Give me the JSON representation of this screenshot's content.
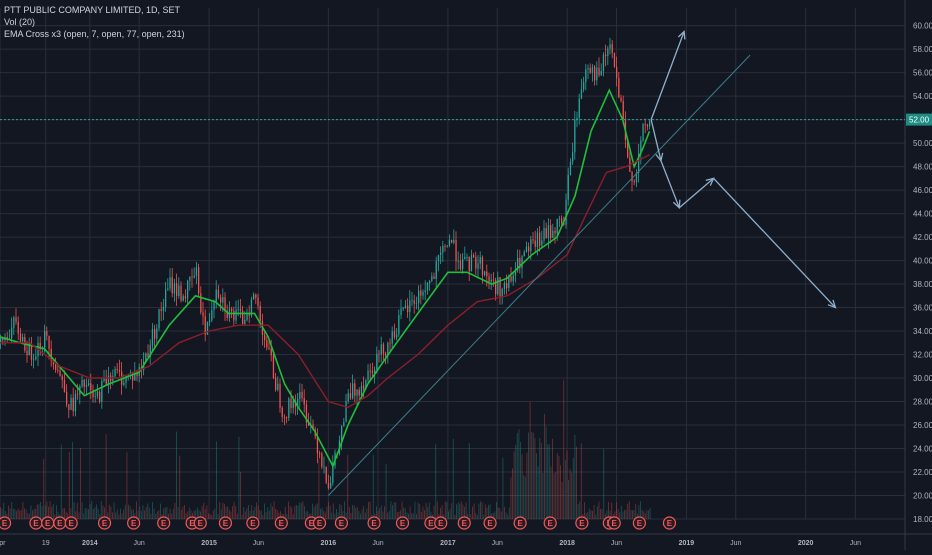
{
  "legend": {
    "title": "PTT PUBLIC COMPANY LIMITED, 1D, SET",
    "volume": "Vol (20)",
    "ema": "EMA Cross x3 (open, 7, open, 77, open, 231)"
  },
  "price_tag": "52.00",
  "colors": {
    "background": "#131722",
    "grid": "#2a2e39",
    "up": "#26a69a",
    "down": "#ef5350",
    "ema_fast": "#1fbf3a",
    "ema_slow": "#8b1e2a",
    "trendline": "#3a7f8a",
    "arrows": "#8fb0cc",
    "price_line": "#26a69a",
    "event_marker": "#f05a5a"
  },
  "event_marker_label": "E",
  "chart_data": {
    "type": "line",
    "title": "PTT PUBLIC COMPANY LIMITED, 1D, SET",
    "x_axis": {
      "tick_labels": [
        "Apr",
        "19",
        "2014",
        "Jun",
        "2015",
        "Jun",
        "2016",
        "Jun",
        "2017",
        "Jun",
        "2018",
        "Jun",
        "2019",
        "Jun",
        "2020",
        "Jun"
      ],
      "tick_dates": [
        "2013-04-01",
        "2013-08-19",
        "2014-01-01",
        "2014-06-01",
        "2015-01-01",
        "2015-06-01",
        "2016-01-01",
        "2016-06-01",
        "2017-01-01",
        "2017-06-01",
        "2018-01-01",
        "2018-06-01",
        "2019-01-01",
        "2019-06-01",
        "2020-01-01",
        "2020-06-01"
      ],
      "range": [
        "2013-04-01",
        "2020-10-31"
      ]
    },
    "y_axis": {
      "ticks": [
        18,
        20,
        22,
        24,
        26,
        28,
        30,
        32,
        34,
        36,
        38,
        40,
        42,
        44,
        46,
        48,
        50,
        52,
        54,
        56,
        58,
        60
      ],
      "tick_labels": [
        "18.00",
        "20.00",
        "22.00",
        "24.00",
        "26.00",
        "28.00",
        "30.00",
        "32.00",
        "34.00",
        "36.00",
        "38.00",
        "40.00",
        "42.00",
        "44.00",
        "46.00",
        "48.00",
        "50.00",
        "52.00",
        "54.00",
        "56.00",
        "58.00",
        "60.00"
      ],
      "range": [
        18,
        61.5
      ],
      "position": "right"
    },
    "grid": true,
    "current_price": 52,
    "series": [
      {
        "kind": "price",
        "x": [
          "2013-04-01",
          "2013-05-15",
          "2013-07-01",
          "2013-08-15",
          "2013-09-20",
          "2013-11-01",
          "2013-12-15",
          "2014-01-15",
          "2014-03-01",
          "2014-04-15",
          "2014-06-01",
          "2014-07-15",
          "2014-09-01",
          "2014-10-15",
          "2014-11-20",
          "2014-12-20",
          "2015-01-20",
          "2015-03-01",
          "2015-04-10",
          "2015-05-20",
          "2015-07-01",
          "2015-08-15",
          "2015-10-01",
          "2015-11-15",
          "2016-01-01",
          "2016-01-25",
          "2016-03-01",
          "2016-04-10",
          "2016-05-20",
          "2016-07-01",
          "2016-08-15",
          "2016-10-01",
          "2016-11-15",
          "2017-01-01",
          "2017-02-15",
          "2017-04-01",
          "2017-05-15",
          "2017-06-25",
          "2017-08-10",
          "2017-09-25",
          "2017-11-10",
          "2017-12-20",
          "2018-01-25",
          "2018-03-01",
          "2018-04-05",
          "2018-05-10",
          "2018-06-10",
          "2018-07-05",
          "2018-07-25",
          "2018-08-20",
          "2018-09-15"
        ],
        "y": [
          33.0,
          34.5,
          32.0,
          33.5,
          31.0,
          27.5,
          29.5,
          28.0,
          30.5,
          30.0,
          30.5,
          34.0,
          38.0,
          37.0,
          39.0,
          33.5,
          38.0,
          35.5,
          35.0,
          37.0,
          32.0,
          27.0,
          28.5,
          25.5,
          21.0,
          23.5,
          28.5,
          29.5,
          31.5,
          33.0,
          35.5,
          37.0,
          38.5,
          42.0,
          39.5,
          40.0,
          38.0,
          37.5,
          40.0,
          41.5,
          42.5,
          43.5,
          52.0,
          57.0,
          55.5,
          58.5,
          53.5,
          48.0,
          47.0,
          51.0,
          52.0
        ]
      },
      {
        "kind": "ema",
        "name": "EMA 7",
        "x": [
          "2013-04-01",
          "2013-06-01",
          "2013-08-15",
          "2013-10-15",
          "2013-12-15",
          "2014-03-01",
          "2014-06-01",
          "2014-09-01",
          "2014-11-20",
          "2015-01-20",
          "2015-03-01",
          "2015-05-20",
          "2015-07-01",
          "2015-08-20",
          "2015-10-01",
          "2015-11-20",
          "2016-01-15",
          "2016-03-01",
          "2016-05-01",
          "2016-07-15",
          "2016-10-01",
          "2017-01-01",
          "2017-03-01",
          "2017-05-15",
          "2017-07-01",
          "2017-09-15",
          "2017-12-01",
          "2018-01-25",
          "2018-03-15",
          "2018-05-10",
          "2018-06-20",
          "2018-07-25",
          "2018-08-20",
          "2018-09-10"
        ],
        "y": [
          33.5,
          33.0,
          32.5,
          30.5,
          28.5,
          29.5,
          30.5,
          34.5,
          37.0,
          36.5,
          35.5,
          35.5,
          33.5,
          29.5,
          27.5,
          25.5,
          22.5,
          26.0,
          29.5,
          32.5,
          35.5,
          39.0,
          39.0,
          38.0,
          38.5,
          40.5,
          42.0,
          45.5,
          51.0,
          54.5,
          52.0,
          48.0,
          49.5,
          51.0
        ]
      },
      {
        "kind": "ema",
        "name": "EMA 77",
        "x": [
          "2013-04-01",
          "2013-07-01",
          "2013-10-01",
          "2014-01-01",
          "2014-04-01",
          "2014-07-01",
          "2014-10-01",
          "2015-01-01",
          "2015-04-01",
          "2015-07-01",
          "2015-10-01",
          "2016-01-01",
          "2016-03-01",
          "2016-05-01",
          "2016-07-01",
          "2016-10-01",
          "2017-01-01",
          "2017-04-01",
          "2017-07-01",
          "2017-10-01",
          "2018-01-01",
          "2018-03-01",
          "2018-05-01",
          "2018-07-01",
          "2018-09-10"
        ],
        "y": [
          33.0,
          33.0,
          31.0,
          30.0,
          30.0,
          31.0,
          33.0,
          34.0,
          34.5,
          34.5,
          32.0,
          28.0,
          27.5,
          28.5,
          30.0,
          32.0,
          34.5,
          36.5,
          37.0,
          38.5,
          40.5,
          44.0,
          47.5,
          48.0,
          49.0
        ]
      }
    ],
    "annotations": {
      "trendline": {
        "from": [
          "2016-01-01",
          20.0
        ],
        "to": [
          "2019-07-15",
          57.5
        ]
      },
      "horizontal_line": 52,
      "arrows": [
        {
          "from": [
            "2018-09-15",
            52.0
          ],
          "to": [
            "2018-12-25",
            59.5
          ]
        },
        {
          "from": [
            "2018-09-15",
            52.0
          ],
          "to": [
            "2018-10-15",
            48.5
          ]
        },
        {
          "from": [
            "2018-10-15",
            48.5
          ],
          "to": [
            "2018-12-10",
            44.5
          ]
        },
        {
          "from": [
            "2018-12-10",
            44.5
          ],
          "to": [
            "2019-03-25",
            47.0
          ]
        },
        {
          "from": [
            "2019-03-25",
            47.0
          ],
          "to": [
            "2020-04-01",
            36.0
          ]
        }
      ]
    },
    "events": {
      "label": "E",
      "dates": [
        "2013-04-15",
        "2013-07-20",
        "2013-08-25",
        "2013-10-01",
        "2013-11-05",
        "2014-02-15",
        "2014-05-15",
        "2014-08-15",
        "2014-11-10",
        "2014-12-05",
        "2015-02-20",
        "2015-05-15",
        "2015-08-10",
        "2015-11-10",
        "2015-12-05",
        "2016-02-10",
        "2016-05-20",
        "2016-08-15",
        "2016-11-10",
        "2016-12-10",
        "2017-02-20",
        "2017-05-10",
        "2017-08-10",
        "2017-11-10",
        "2018-02-15",
        "2018-05-10",
        "2018-05-25",
        "2018-08-10",
        "2018-11-10"
      ]
    }
  }
}
